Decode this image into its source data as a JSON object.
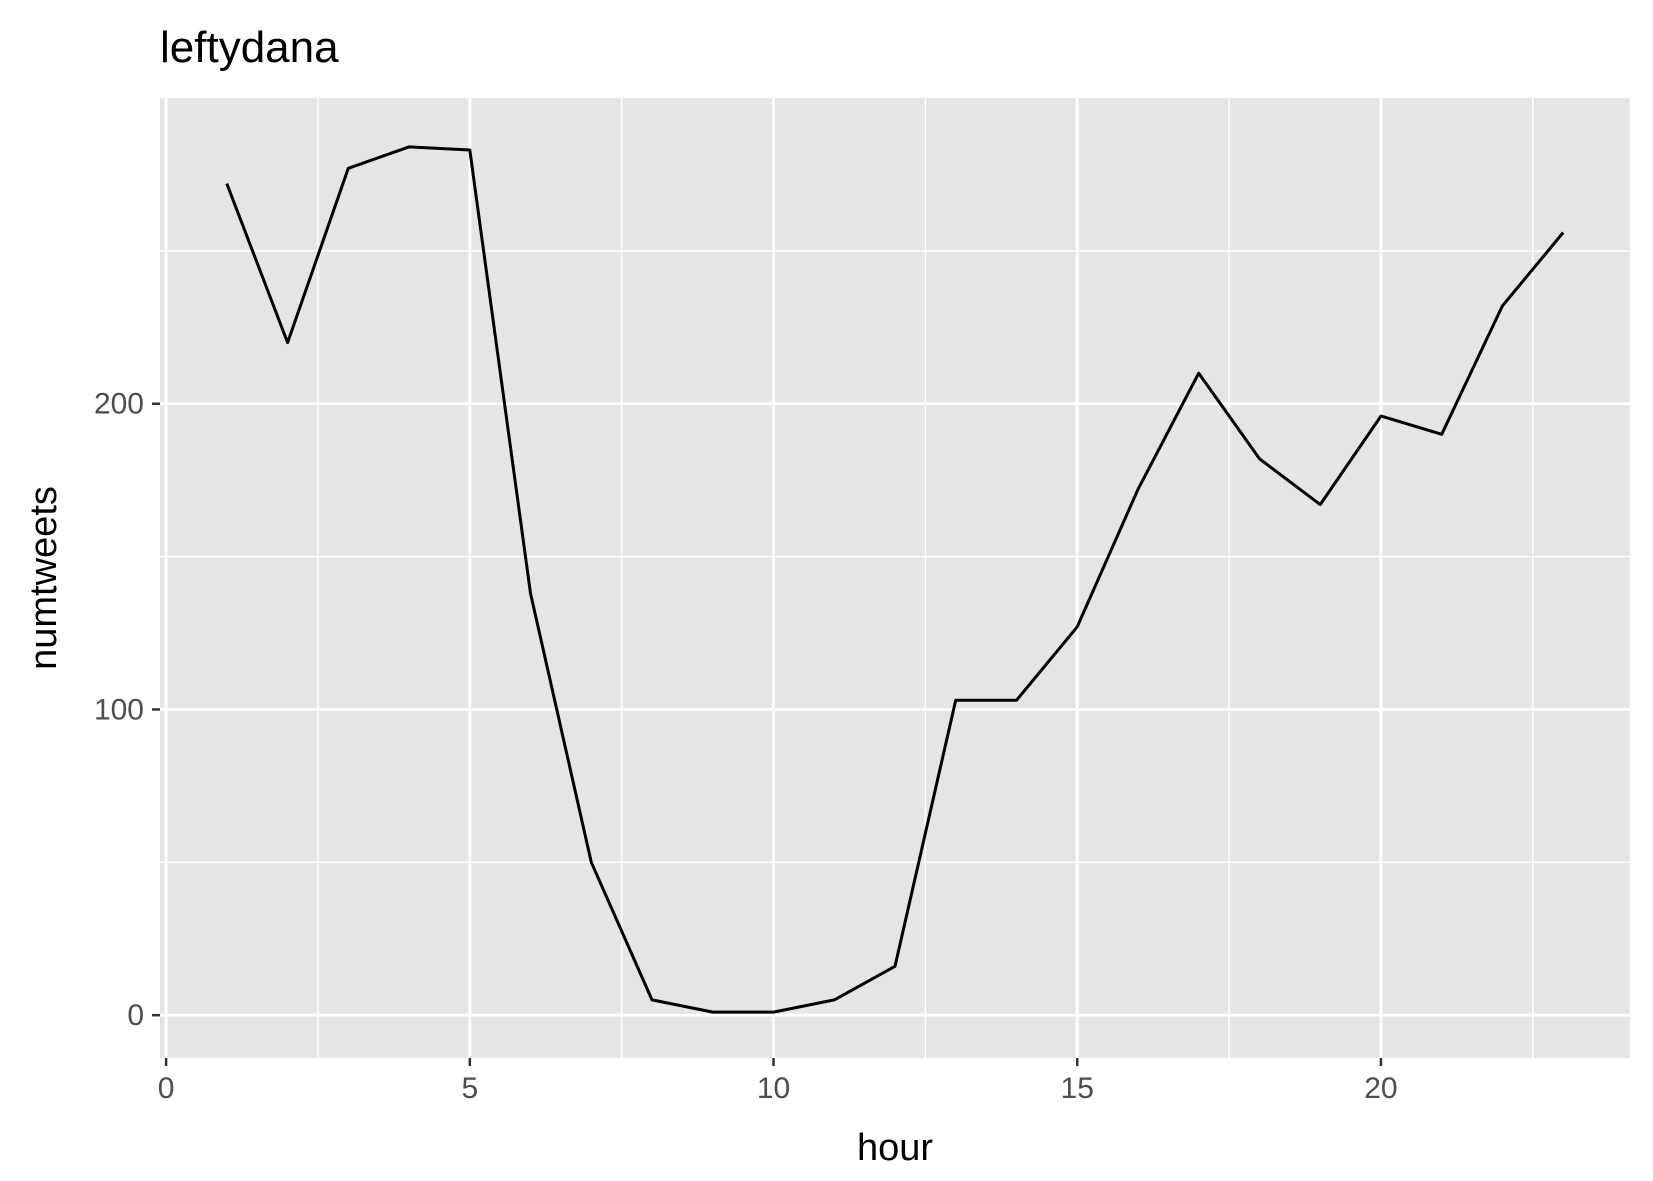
{
  "chart_data": {
    "type": "line",
    "title": "leftydana",
    "xlabel": "hour",
    "ylabel": "numtweets",
    "xlim": [
      -0.1,
      24.1
    ],
    "ylim": [
      -14,
      300
    ],
    "x_ticks": [
      0,
      5,
      10,
      15,
      20
    ],
    "y_ticks": [
      0,
      100,
      200
    ],
    "x_minor_ticks": [
      2.5,
      7.5,
      12.5,
      17.5,
      22.5
    ],
    "y_minor_ticks": [
      50,
      150,
      250
    ],
    "grid": true,
    "colors": {
      "panel": "#e5e5e5",
      "grid": "#ffffff",
      "line": "#000000"
    },
    "series": [
      {
        "x": [
          1,
          2,
          3,
          4,
          5,
          6,
          7,
          8,
          9,
          10,
          11,
          12,
          13,
          14,
          15,
          16,
          17,
          18,
          19,
          20,
          21,
          22,
          23
        ],
        "y": [
          272,
          220,
          277,
          284,
          283,
          138,
          50,
          5,
          1,
          1,
          5,
          16,
          103,
          103,
          127,
          172,
          210,
          182,
          167,
          196,
          190,
          232,
          256
        ]
      }
    ]
  }
}
